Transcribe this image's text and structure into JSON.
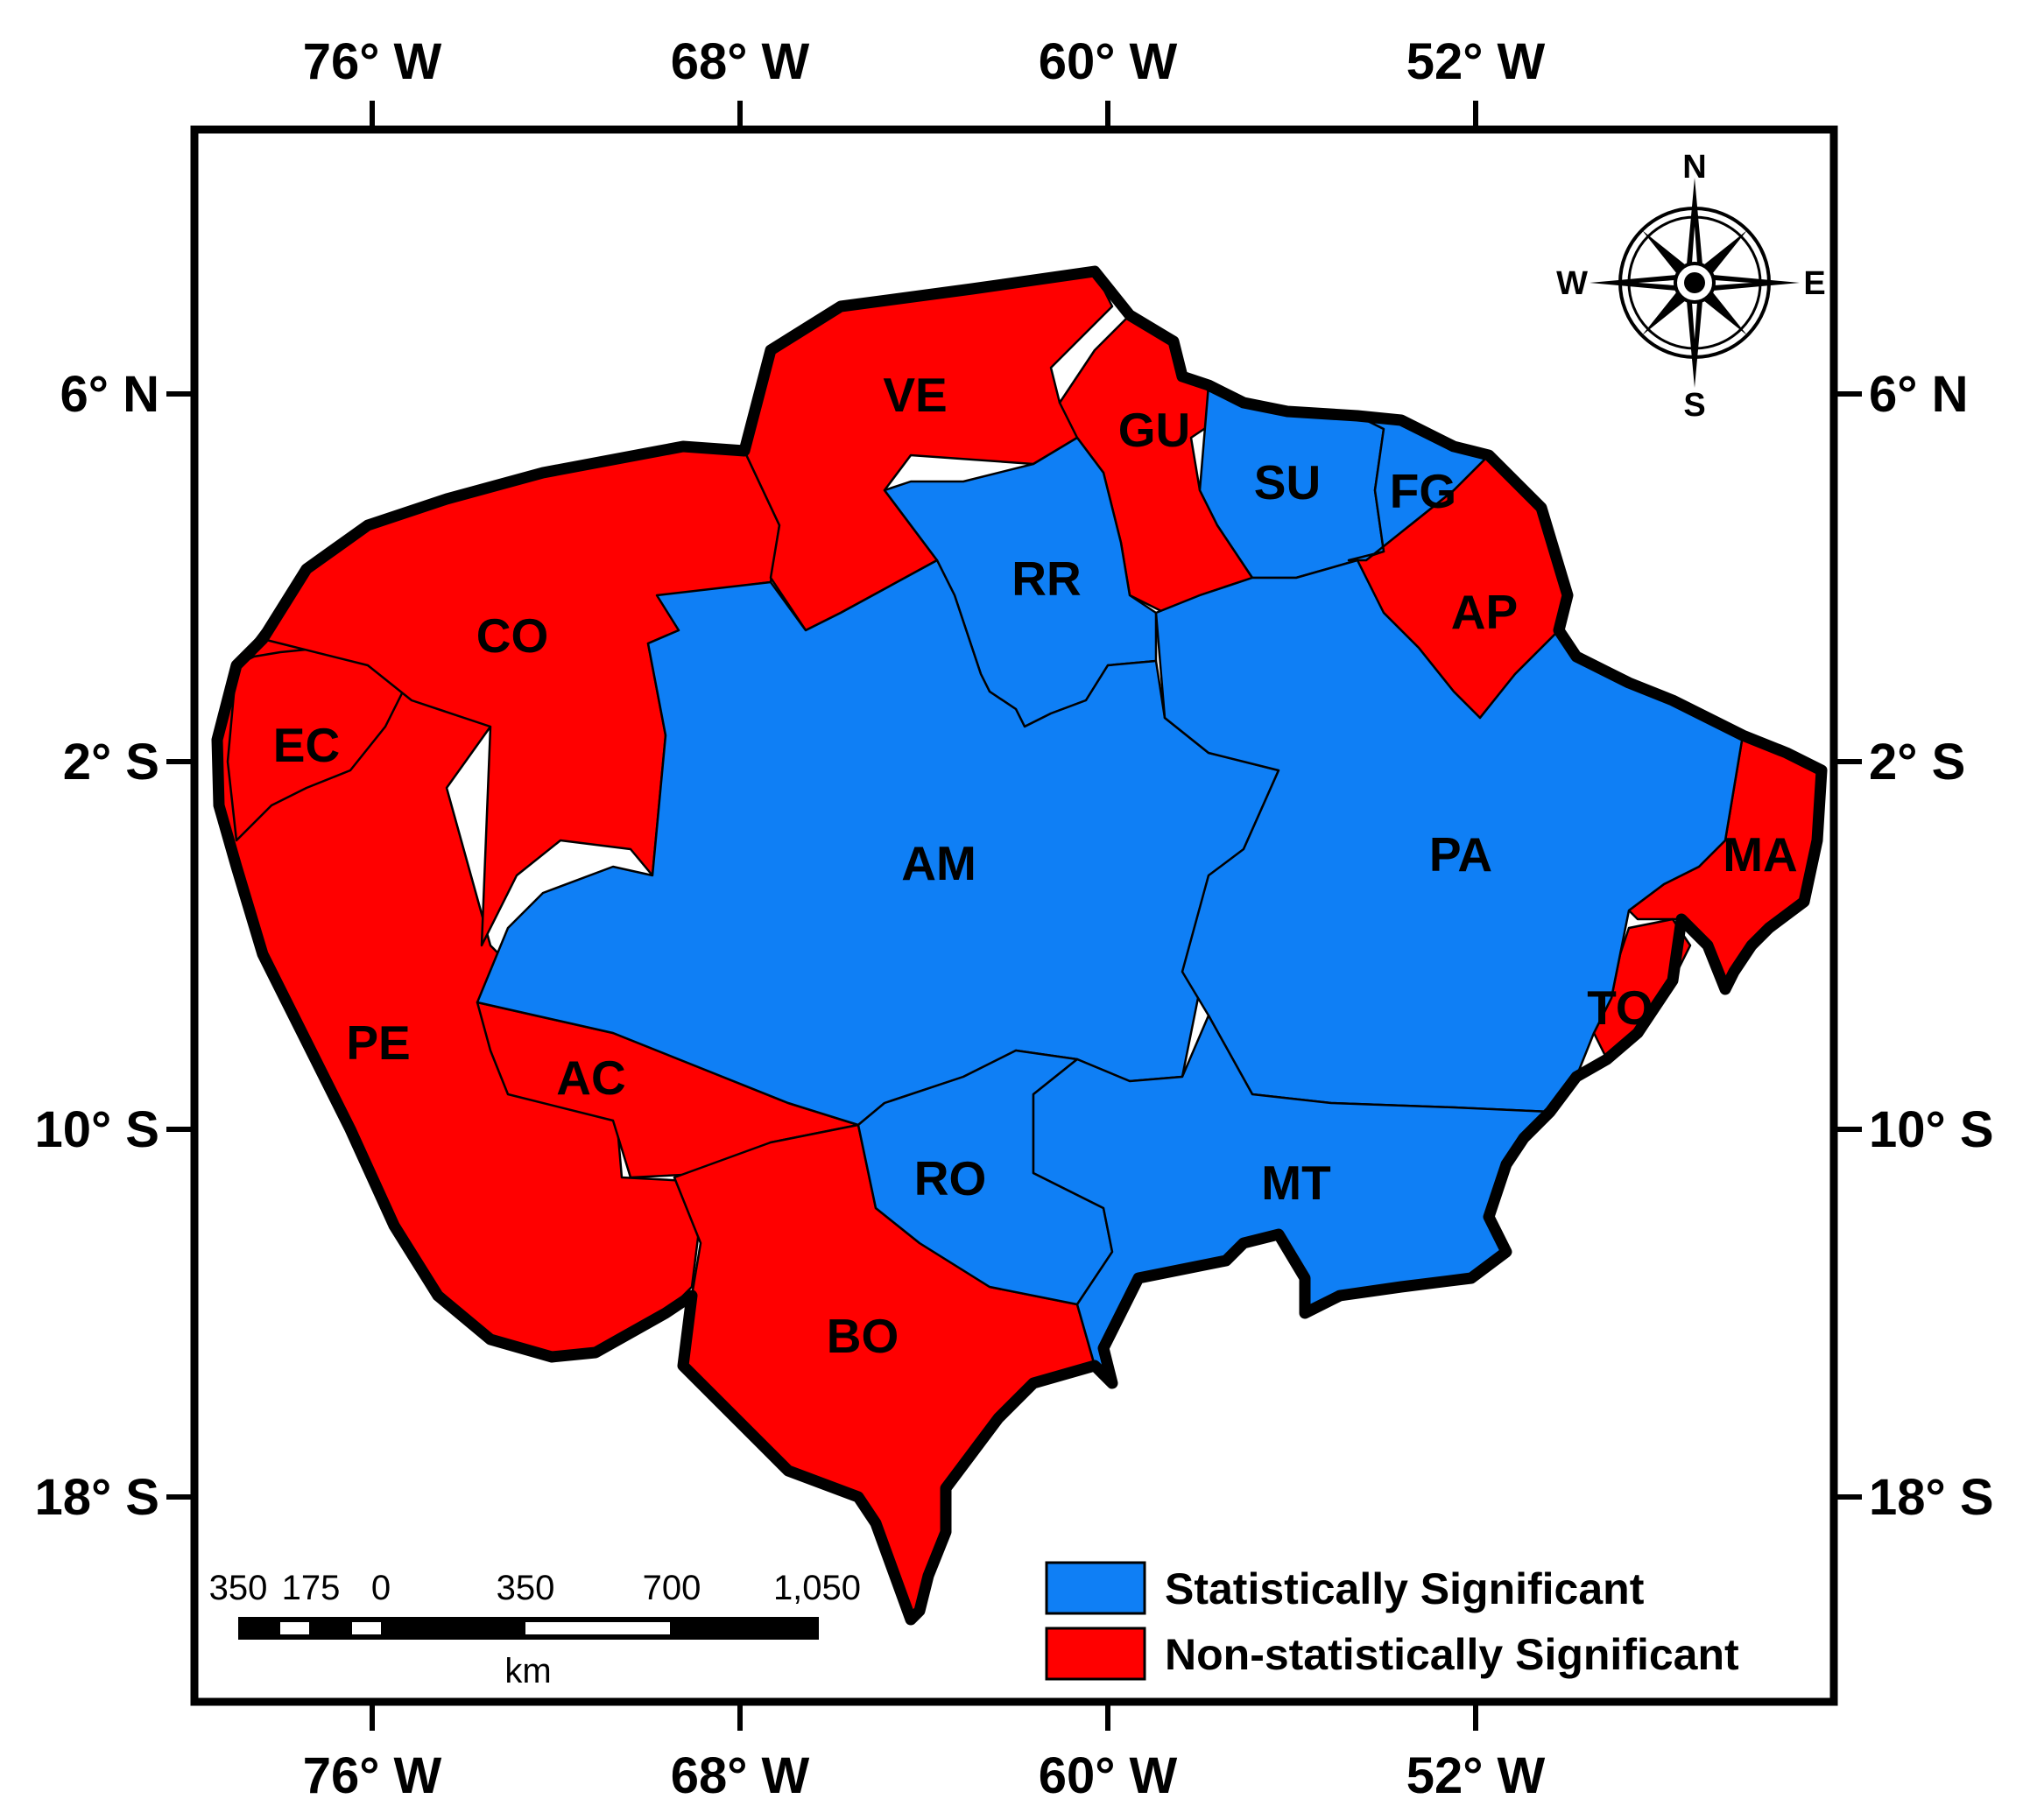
{
  "axes": {
    "top_labels": [
      "76° W",
      "68° W",
      "60° W",
      "52° W"
    ],
    "bottom_labels": [
      "76° W",
      "68° W",
      "60° W",
      "52° W"
    ],
    "left_labels": [
      "6° N",
      "2° S",
      "10° S",
      "18° S"
    ],
    "right_labels": [
      "6° N",
      "2° S",
      "10° S",
      "18° S"
    ]
  },
  "regions": {
    "VE": "VE",
    "GU": "GU",
    "SU": "SU",
    "FG": "FG",
    "RR": "RR",
    "AP": "AP",
    "CO": "CO",
    "EC": "EC",
    "AM": "AM",
    "PA": "PA",
    "MA": "MA",
    "TO": "TO",
    "PE": "PE",
    "AC": "AC",
    "RO": "RO",
    "MT": "MT",
    "BO": "BO"
  },
  "region_status": {
    "VE": "non_significant",
    "GU": "non_significant",
    "AP": "non_significant",
    "CO": "non_significant",
    "EC": "non_significant",
    "MA": "non_significant",
    "PE": "non_significant",
    "AC": "non_significant",
    "BO": "non_significant",
    "TO": "non_significant",
    "SU": "significant",
    "FG": "significant",
    "RR": "significant",
    "AM": "significant",
    "PA": "significant",
    "RO": "significant",
    "MT": "significant"
  },
  "compass": {
    "N": "N",
    "S": "S",
    "E": "E",
    "W": "W"
  },
  "scale_bar": {
    "ticks": [
      "350",
      "175",
      "0",
      "350",
      "700",
      "1,050"
    ],
    "unit": "km"
  },
  "legend": [
    {
      "label": "Statistically Significant",
      "color": "#0f7ff5"
    },
    {
      "label": "Non-statistically Significant",
      "color": "#ff0000"
    }
  ],
  "colors": {
    "significant": "#0f7ff5",
    "non_significant": "#ff0000"
  }
}
